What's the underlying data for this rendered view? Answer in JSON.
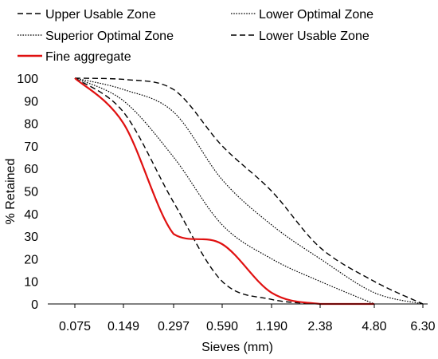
{
  "chart_data": {
    "type": "line",
    "title": "",
    "xlabel": "Sieves (mm)",
    "ylabel": "% Retained",
    "ylim": [
      0,
      100
    ],
    "yticks": [
      0,
      10,
      20,
      30,
      40,
      50,
      60,
      70,
      80,
      90,
      100
    ],
    "xticklabels": [
      "0.075",
      "0.149",
      "0.297",
      "0.590",
      "1.190",
      "2.38",
      "4.80",
      "6.30"
    ],
    "x_scale": "log",
    "grid": false,
    "legend_position": "top",
    "series": [
      {
        "name": "Upper Usable Zone",
        "color": "#000000",
        "dash": "dashed",
        "x": [
          0.075,
          0.149,
          0.297,
          0.59,
          1.19,
          2.38,
          4.8,
          6.3
        ],
        "y": [
          100,
          99.5,
          95,
          70,
          50,
          25,
          10,
          0
        ]
      },
      {
        "name": "Lower Optimal Zone",
        "color": "#000000",
        "dash": "dotted",
        "x": [
          0.075,
          0.149,
          0.297,
          0.59,
          1.19,
          2.38,
          4.8,
          6.3
        ],
        "y": [
          100,
          95,
          85,
          55,
          35,
          20,
          5,
          0
        ]
      },
      {
        "name": "Superior Optimal Zone",
        "color": "#000000",
        "dash": "dotted",
        "x": [
          0.075,
          0.149,
          0.297,
          0.59,
          1.19,
          2.38,
          4.8
        ],
        "y": [
          100,
          90,
          65,
          35,
          20,
          10,
          0
        ]
      },
      {
        "name": "Lower Usable Zone",
        "color": "#000000",
        "dash": "dashed",
        "x": [
          0.075,
          0.149,
          0.297,
          0.59,
          1.19,
          2.38
        ],
        "y": [
          100,
          85,
          45,
          10,
          2,
          0
        ]
      },
      {
        "name": "Fine aggregate",
        "color": "#e01010",
        "dash": "solid",
        "x": [
          0.075,
          0.149,
          0.297,
          0.59,
          1.19,
          2.38,
          4.8
        ],
        "y": [
          100,
          80,
          31,
          26.5,
          5,
          0,
          0
        ]
      }
    ]
  }
}
